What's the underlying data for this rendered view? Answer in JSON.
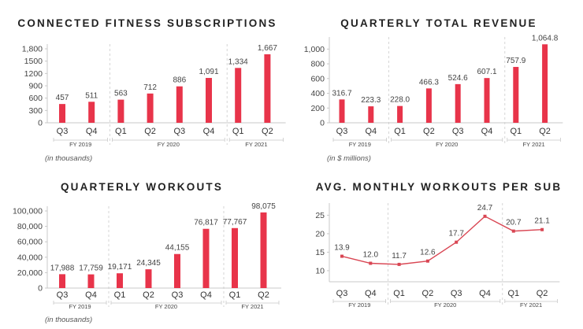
{
  "colors": {
    "bar": "#e8344a",
    "line": "#d94653",
    "text": "#222222"
  },
  "chart_data": [
    {
      "type": "bar",
      "title": "CONNECTED FITNESS SUBSCRIPTIONS",
      "categories": [
        "Q3",
        "Q4",
        "Q1",
        "Q2",
        "Q3",
        "Q4",
        "Q1",
        "Q2"
      ],
      "values": [
        457,
        511,
        563,
        712,
        886,
        1091,
        1334,
        1667
      ],
      "value_labels": [
        "457",
        "511",
        "563",
        "712",
        "886",
        "1,091",
        "1,334",
        "1,667"
      ],
      "yticks": [
        "0",
        "300",
        "600",
        "900",
        "1200",
        "1500",
        "1,800"
      ],
      "ylim": [
        0,
        1800
      ],
      "groups": [
        {
          "label": "FY 2019",
          "count": 2
        },
        {
          "label": "FY 2020",
          "count": 4
        },
        {
          "label": "FY 2021",
          "count": 2
        }
      ],
      "note": "(in thousands)",
      "grid": false
    },
    {
      "type": "bar",
      "title": "QUARTERLY TOTAL REVENUE",
      "categories": [
        "Q3",
        "Q4",
        "Q1",
        "Q2",
        "Q3",
        "Q4",
        "Q1",
        "Q2"
      ],
      "values": [
        316.7,
        223.3,
        228.0,
        466.3,
        524.6,
        607.1,
        757.9,
        1064.8
      ],
      "value_labels": [
        "316.7",
        "223.3",
        "228.0",
        "466.3",
        "524.6",
        "607.1",
        "757.9",
        "1,064.8"
      ],
      "yticks": [
        "0",
        "200",
        "400",
        "600",
        "800",
        "1,000"
      ],
      "ylim": [
        0,
        1100
      ],
      "groups": [
        {
          "label": "FY 2019",
          "count": 2
        },
        {
          "label": "FY 2020",
          "count": 4
        },
        {
          "label": "FY 2021",
          "count": 2
        }
      ],
      "note": "(in $ millions)",
      "grid": false
    },
    {
      "type": "bar",
      "title": "QUARTERLY WORKOUTS",
      "categories": [
        "Q3",
        "Q4",
        "Q1",
        "Q2",
        "Q3",
        "Q4",
        "Q1",
        "Q2"
      ],
      "values": [
        17988,
        17759,
        19171,
        24345,
        44155,
        76817,
        77767,
        98075
      ],
      "value_labels": [
        "17,988",
        "17,759",
        "19,171",
        "24,345",
        "44,155",
        "76,817",
        "77,767",
        "98,075"
      ],
      "yticks": [
        "0",
        "20,000",
        "40,000",
        "60,000",
        "80,000",
        "100,000"
      ],
      "ylim": [
        0,
        100000
      ],
      "groups": [
        {
          "label": "FY 2019",
          "count": 2
        },
        {
          "label": "FY 2020",
          "count": 4
        },
        {
          "label": "FY 2021",
          "count": 2
        }
      ],
      "note": "(in thousands)",
      "grid": false
    },
    {
      "type": "line",
      "title": "AVG. MONTHLY WORKOUTS PER SUB",
      "categories": [
        "Q3",
        "Q4",
        "Q1",
        "Q2",
        "Q3",
        "Q4",
        "Q1",
        "Q2"
      ],
      "values": [
        13.9,
        12.0,
        11.7,
        12.6,
        17.7,
        24.7,
        20.7,
        21.1
      ],
      "value_labels": [
        "13.9",
        "12.0",
        "11.7",
        "12.6",
        "17.7",
        "24.7",
        "20.7",
        "21.1"
      ],
      "yticks": [
        "10",
        "15",
        "20",
        "25"
      ],
      "ylim": [
        7,
        27
      ],
      "groups": [
        {
          "label": "FY 2019",
          "count": 2
        },
        {
          "label": "FY 2020",
          "count": 4
        },
        {
          "label": "FY 2021",
          "count": 2
        }
      ],
      "note": "",
      "grid": false
    }
  ]
}
